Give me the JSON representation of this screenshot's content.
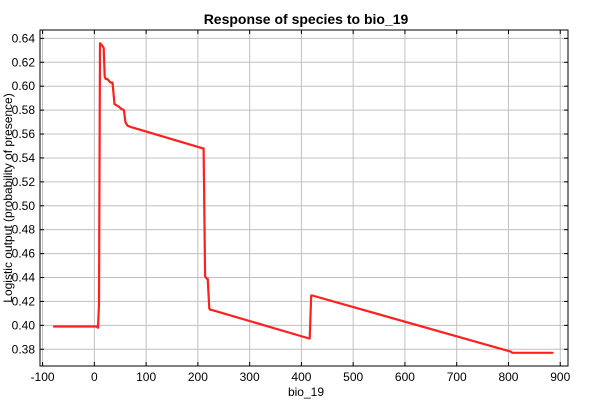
{
  "chart_data": {
    "type": "line",
    "title": "Response of species to bio_19",
    "xlabel": "bio_19",
    "ylabel": "Logistic output (probability of presence)",
    "xlim": [
      -105,
      915
    ],
    "ylim": [
      0.366,
      0.647
    ],
    "xticks": [
      -100,
      0,
      100,
      200,
      300,
      400,
      500,
      600,
      700,
      800,
      900
    ],
    "xtick_labels": [
      "-100",
      "0",
      "100",
      "200",
      "300",
      "400",
      "500",
      "600",
      "700",
      "800",
      "900"
    ],
    "yticks": [
      0.38,
      0.4,
      0.42,
      0.44,
      0.46,
      0.48,
      0.5,
      0.52,
      0.54,
      0.56,
      0.58,
      0.6,
      0.62,
      0.64
    ],
    "ytick_labels": [
      "0.38",
      "0.40",
      "0.42",
      "0.44",
      "0.46",
      "0.48",
      "0.50",
      "0.52",
      "0.54",
      "0.56",
      "0.58",
      "0.60",
      "0.62",
      "0.64"
    ],
    "grid": true,
    "legend": "none",
    "series": [
      {
        "color": "#ff2020",
        "x": [
          -78,
          5,
          7,
          9,
          11,
          15,
          18,
          20,
          22,
          25,
          29,
          32,
          35,
          39,
          43,
          47,
          52,
          57,
          60,
          64,
          70,
          210,
          211,
          214,
          217,
          219,
          222,
          224,
          226,
          415,
          416,
          419,
          421,
          805,
          807,
          885
        ],
        "y": [
          0.399,
          0.399,
          0.398,
          0.418,
          0.636,
          0.634,
          0.632,
          0.608,
          0.606,
          0.606,
          0.604,
          0.603,
          0.603,
          0.585,
          0.584,
          0.583,
          0.581,
          0.58,
          0.57,
          0.567,
          0.566,
          0.548,
          0.548,
          0.441,
          0.439,
          0.439,
          0.414,
          0.413,
          0.413,
          0.389,
          0.389,
          0.425,
          0.425,
          0.378,
          0.377,
          0.377
        ]
      }
    ]
  }
}
